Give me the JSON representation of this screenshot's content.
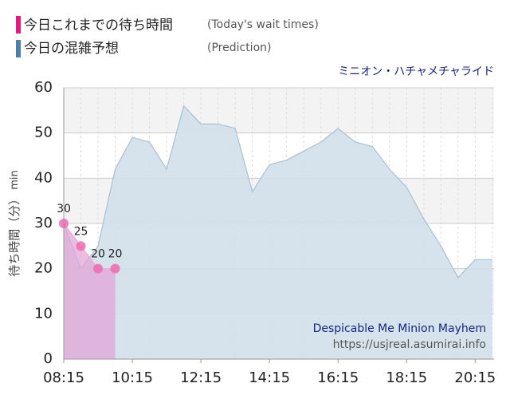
{
  "chart_data": {
    "type": "area",
    "title": "ミニオン・ハチャメチャライド",
    "subtitle": "Despicable Me Minion Mayhem",
    "source": "https://usjreal.asumirai.info",
    "y_label": "待ち時間（分）",
    "y_unit": "min",
    "xlim": [
      "08:15",
      "20:48"
    ],
    "xticks": [
      "08:15",
      "10:15",
      "12:15",
      "14:15",
      "16:15",
      "18:15",
      "20:15"
    ],
    "ylim": [
      0,
      60
    ],
    "yticks": [
      0,
      10,
      20,
      30,
      40,
      50,
      60
    ],
    "grid": true,
    "series": [
      {
        "name": "今日これまでの待ち時間",
        "name_en": "(Today's wait times)",
        "color": "#e8187d",
        "x": [
          "08:15",
          "08:45",
          "09:15",
          "09:45"
        ],
        "values": [
          30,
          25,
          20,
          20
        ]
      },
      {
        "name": "今日の混雑予想",
        "name_en": "(Prediction)",
        "color": "#4a7fb0",
        "x": [
          "08:15",
          "08:45",
          "09:15",
          "09:45",
          "10:15",
          "10:45",
          "11:15",
          "11:45",
          "12:15",
          "12:45",
          "13:15",
          "13:45",
          "14:15",
          "14:45",
          "15:15",
          "15:45",
          "16:15",
          "16:45",
          "17:15",
          "17:45",
          "18:15",
          "18:45",
          "19:15",
          "19:45",
          "20:15",
          "20:45"
        ],
        "values": [
          30,
          20,
          25,
          42,
          49,
          48,
          42,
          56,
          52,
          52,
          51,
          37,
          43,
          44,
          46,
          48,
          51,
          48,
          47,
          42,
          38,
          31,
          25,
          18,
          22,
          22
        ]
      }
    ]
  }
}
